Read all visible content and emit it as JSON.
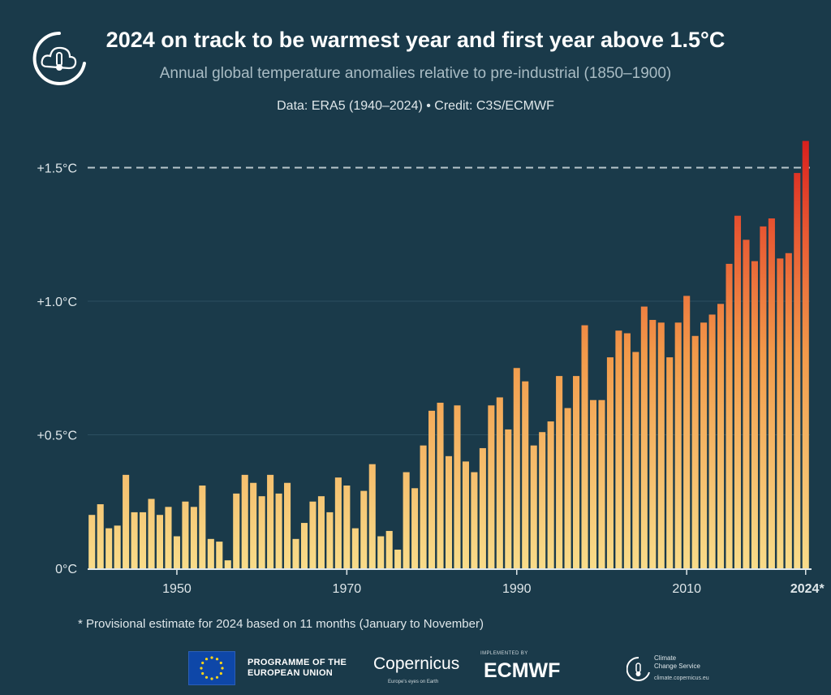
{
  "header": {
    "title": "2024 on track to be warmest year and first year above 1.5°C",
    "subtitle": "Annual global temperature anomalies relative to pre-industrial (1850–1900)",
    "credit": "Data: ERA5 (1940–2024) • Credit: C3S/ECMWF"
  },
  "footnote": "* Provisional estimate for 2024 based on 11 months (January to November)",
  "footer": {
    "eu_text_line1": "PROGRAMME OF THE",
    "eu_text_line2": "EUROPEAN UNION",
    "copernicus": "Copernicus",
    "copernicus_tag": "Europe's eyes on Earth",
    "ecmwf_implemented": "IMPLEMENTED BY",
    "ecmwf": "ECMWF",
    "ccs_line1": "Climate",
    "ccs_line2": "Change Service",
    "ccs_url": "climate.copernicus.eu"
  },
  "colors": {
    "background": "#1a3a4a",
    "bar_low": "#f8dc8a",
    "bar_mid": "#f29a4a",
    "bar_high": "#d9201e",
    "threshold_line": "#b8c6cc"
  },
  "icons": {
    "c3s_logo": "cloud-thermometer-icon",
    "eu_flag": "eu-flag-icon"
  },
  "chart_data": {
    "type": "bar",
    "x": [
      1940,
      1941,
      1942,
      1943,
      1944,
      1945,
      1946,
      1947,
      1948,
      1949,
      1950,
      1951,
      1952,
      1953,
      1954,
      1955,
      1956,
      1957,
      1958,
      1959,
      1960,
      1961,
      1962,
      1963,
      1964,
      1965,
      1966,
      1967,
      1968,
      1969,
      1970,
      1971,
      1972,
      1973,
      1974,
      1975,
      1976,
      1977,
      1978,
      1979,
      1980,
      1981,
      1982,
      1983,
      1984,
      1985,
      1986,
      1987,
      1988,
      1989,
      1990,
      1991,
      1992,
      1993,
      1994,
      1995,
      1996,
      1997,
      1998,
      1999,
      2000,
      2001,
      2002,
      2003,
      2004,
      2005,
      2006,
      2007,
      2008,
      2009,
      2010,
      2011,
      2012,
      2013,
      2014,
      2015,
      2016,
      2017,
      2018,
      2019,
      2020,
      2021,
      2022,
      2023,
      2024
    ],
    "values": [
      0.2,
      0.24,
      0.15,
      0.16,
      0.35,
      0.21,
      0.21,
      0.26,
      0.2,
      0.23,
      0.12,
      0.25,
      0.23,
      0.31,
      0.11,
      0.1,
      0.03,
      0.28,
      0.35,
      0.32,
      0.27,
      0.35,
      0.28,
      0.32,
      0.11,
      0.17,
      0.25,
      0.27,
      0.21,
      0.34,
      0.31,
      0.15,
      0.29,
      0.39,
      0.12,
      0.14,
      0.07,
      0.36,
      0.3,
      0.46,
      0.59,
      0.62,
      0.42,
      0.61,
      0.4,
      0.36,
      0.45,
      0.61,
      0.64,
      0.52,
      0.75,
      0.7,
      0.46,
      0.51,
      0.55,
      0.72,
      0.6,
      0.72,
      0.91,
      0.63,
      0.63,
      0.79,
      0.89,
      0.88,
      0.81,
      0.98,
      0.93,
      0.92,
      0.79,
      0.92,
      1.02,
      0.87,
      0.92,
      0.95,
      0.99,
      1.14,
      1.32,
      1.23,
      1.15,
      1.28,
      1.31,
      1.16,
      1.18,
      1.48,
      1.6
    ],
    "x_ticks": [
      "1950",
      "1970",
      "1990",
      "2010",
      "2024*"
    ],
    "y_ticks": [
      "0°C",
      "+0.5°C",
      "+1.0°C",
      "+1.5°C"
    ],
    "ylim": [
      0,
      1.6
    ],
    "threshold": 1.5,
    "grid": true
  }
}
